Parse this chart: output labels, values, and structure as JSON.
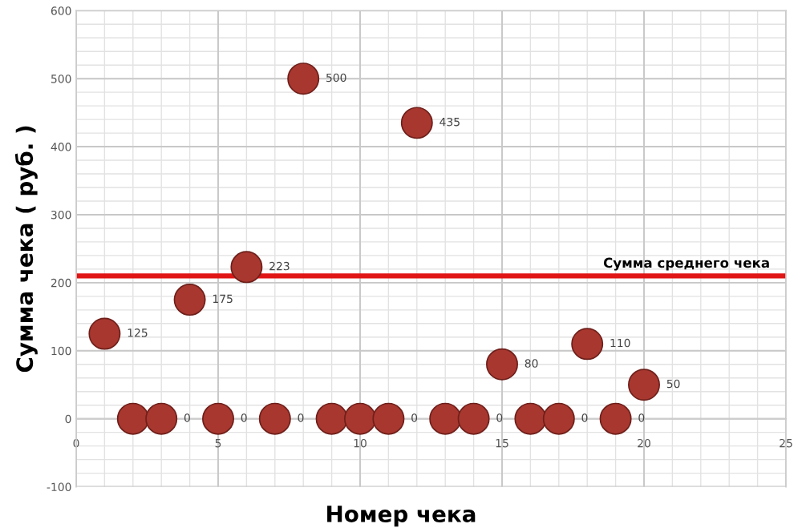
{
  "chart_data": {
    "type": "scatter",
    "xlabel": "Номер чека",
    "ylabel": "Сумма чека ( руб. )",
    "x": [
      1,
      2,
      3,
      4,
      5,
      6,
      7,
      8,
      9,
      10,
      11,
      12,
      13,
      14,
      15,
      16,
      17,
      18,
      19,
      20
    ],
    "series": [
      {
        "color": "#a8372f",
        "values": [
          125,
          0,
          0,
          175,
          0,
          223,
          0,
          500,
          0,
          0,
          0,
          435,
          0,
          0,
          80,
          0,
          0,
          110,
          0,
          50
        ]
      }
    ],
    "xlim": [
      0,
      25
    ],
    "xticks": [
      0,
      5,
      10,
      15,
      20,
      25
    ],
    "ylim": [
      -100,
      600
    ],
    "yticks": [
      -100,
      0,
      100,
      200,
      300,
      400,
      500,
      600
    ],
    "ref_lines": [
      {
        "axis": "y",
        "value": 210,
        "label": "Сумма среднего чека",
        "color": "#e01515"
      }
    ],
    "value_labels": [
      "125",
      null,
      "0",
      "175",
      "0",
      "223",
      "0",
      "500",
      null,
      null,
      "0",
      "435",
      null,
      "0",
      "80",
      null,
      "0",
      "110",
      "0",
      "50"
    ],
    "grid": true,
    "marker": "circle"
  }
}
